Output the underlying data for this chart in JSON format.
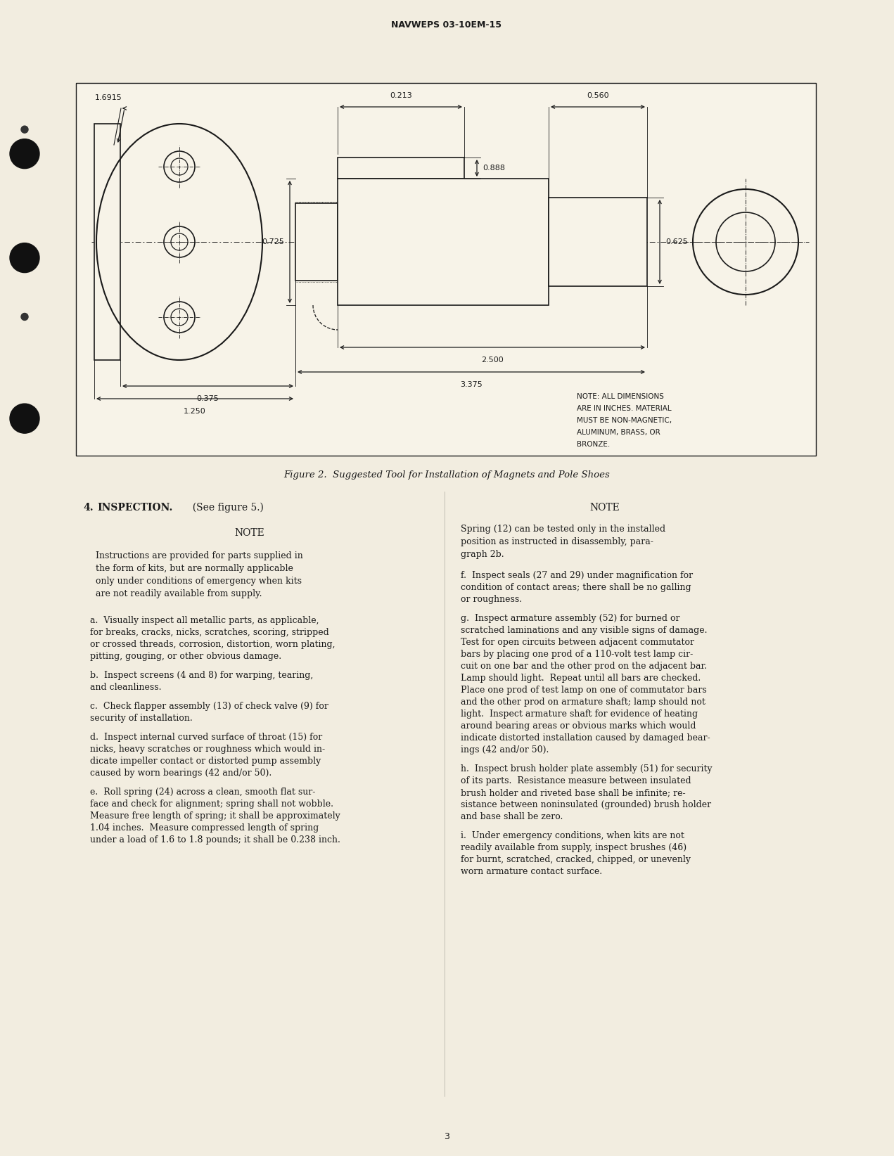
{
  "page_header": "NAVWEPS 03-10EM-15",
  "page_number": "3",
  "fig_caption": "Figure 2.  Suggested Tool for Installation of Magnets and Pole Shoes",
  "note_label_lines": [
    "NOTE: ALL DIMENSIONS",
    "ARE IN INCHES. MATERIAL",
    "MUST BE NON-MAGNETIC,",
    "ALUMINUM, BRASS, OR",
    "BRONZE."
  ],
  "section_header": "4.  INSPECTION.",
  "section_header2": "  (See figure 5.)",
  "note_title": "NOTE",
  "note_text_lines": [
    "Instructions are provided for parts supplied in",
    "the form of kits, but are normally applicable",
    "only under conditions of emergency when kits",
    "are not readily available from supply."
  ],
  "col1_paragraphs": [
    [
      "a.  Visually inspect all metallic parts, as applicable,",
      "for breaks, cracks, nicks, scratches, scoring, stripped",
      "or crossed threads, corrosion, distortion, worn plating,",
      "pitting, gouging, or other obvious damage."
    ],
    [
      "b.  Inspect screens (4 and 8) for warping, tearing,",
      "and cleanliness."
    ],
    [
      "c.  Check flapper assembly (13) of check valve (9) for",
      "security of installation."
    ],
    [
      "d.  Inspect internal curved surface of throat (15) for",
      "nicks, heavy scratches or roughness which would in-",
      "dicate impeller contact or distorted pump assembly",
      "caused by worn bearings (42 and/or 50)."
    ],
    [
      "e.  Roll spring (24) across a clean, smooth flat sur-",
      "face and check for alignment; spring shall not wobble.",
      "Measure free length of spring; it shall be approximately",
      "1.04 inches.  Measure compressed length of spring",
      "under a load of 1.6 to 1.8 pounds; it shall be 0.238 inch."
    ]
  ],
  "col2_note_title": "NOTE",
  "col2_note_text_lines": [
    "Spring (12) can be tested only in the installed",
    "position as instructed in disassembly, para-",
    "graph 2b."
  ],
  "col2_paragraphs": [
    [
      "f.  Inspect seals (27 and 29) under magnification for",
      "condition of contact areas; there shall be no galling",
      "or roughness."
    ],
    [
      "g.  Inspect armature assembly (52) for burned or",
      "scratched laminations and any visible signs of damage.",
      "Test for open circuits between adjacent commutator",
      "bars by placing one prod of a 110-volt test lamp cir-",
      "cuit on one bar and the other prod on the adjacent bar.",
      "Lamp should light.  Repeat until all bars are checked.",
      "Place one prod of test lamp on one of commutator bars",
      "and the other prod on armature shaft; lamp should not",
      "light.  Inspect armature shaft for evidence of heating",
      "around bearing areas or obvious marks which would",
      "indicate distorted installation caused by damaged bear-",
      "ings (42 and/or 50)."
    ],
    [
      "h.  Inspect brush holder plate assembly (51) for security",
      "of its parts.  Resistance measure between insulated",
      "brush holder and riveted base shall be infinite; re-",
      "sistance between noninsulated (grounded) brush holder",
      "and base shall be zero."
    ],
    [
      "i.  Under emergency conditions, when kits are not",
      "readily available from supply, inspect brushes (46)",
      "for burnt, scratched, cracked, chipped, or unevenly",
      "worn armature contact surface."
    ]
  ],
  "bg_color": "#f2ede0",
  "text_color": "#1a1a1a",
  "line_color": "#1a1a1a",
  "box_bg": "#f7f3e8"
}
